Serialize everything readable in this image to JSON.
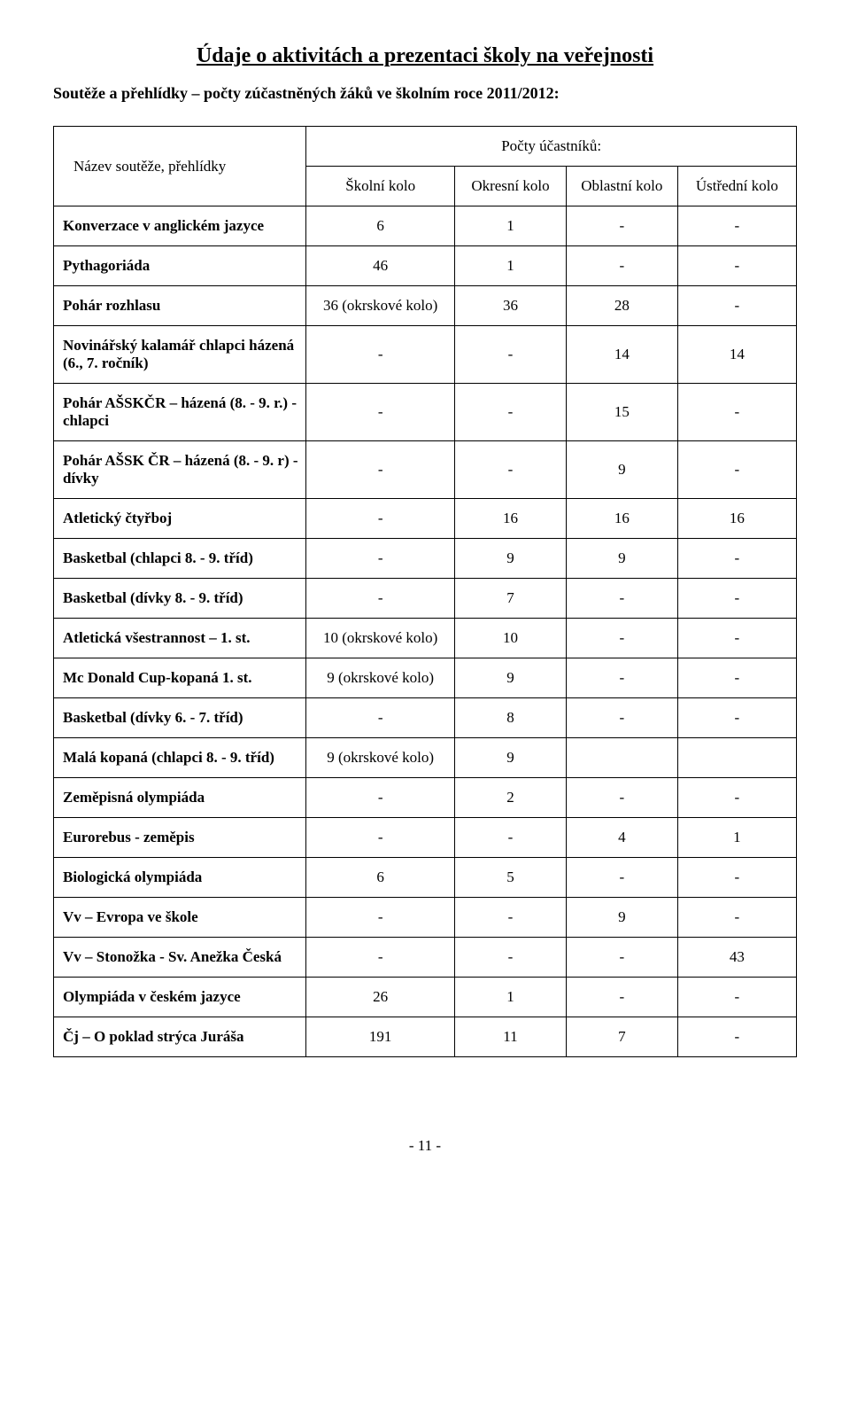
{
  "title": "Údaje o aktivitách a prezentaci školy na veřejnosti",
  "subhead": "Soutěže a přehlídky – počty zúčastněných žáků ve školním roce 2011/2012:",
  "header_name": "Název soutěže, přehlídky",
  "header_group": "Počty účastníků:",
  "cols": [
    "Školní kolo",
    "Okresní kolo",
    "Oblastní kolo",
    "Ústřední kolo"
  ],
  "rows": [
    {
      "name": "Konverzace v anglickém jazyce",
      "v": [
        "6",
        "1",
        "-",
        "-"
      ]
    },
    {
      "name": "Pythagoriáda",
      "v": [
        "46",
        "1",
        "-",
        "-"
      ]
    },
    {
      "name": "Pohár rozhlasu",
      "v": [
        "36 (okrskové kolo)",
        "36",
        "28",
        "-"
      ]
    },
    {
      "name": "Novinářský kalamář chlapci házená (6., 7. ročník)",
      "v": [
        "-",
        "-",
        "14",
        "14"
      ]
    },
    {
      "name": "Pohár AŠSKČR – házená (8. - 9. r.) - chlapci",
      "v": [
        "-",
        "-",
        "15",
        "-"
      ]
    },
    {
      "name": "Pohár AŠSK ČR – házená (8. - 9. r) - dívky",
      "v": [
        "-",
        "-",
        "9",
        "-"
      ]
    },
    {
      "name": "Atletický čtyřboj",
      "v": [
        "-",
        "16",
        "16",
        "16"
      ]
    },
    {
      "name": "Basketbal (chlapci 8. - 9. tříd)",
      "v": [
        "-",
        "9",
        "9",
        "-"
      ]
    },
    {
      "name": "Basketbal (dívky 8. - 9. tříd)",
      "v": [
        "-",
        "7",
        "-",
        "-"
      ]
    },
    {
      "name": "Atletická všestrannost – 1. st.",
      "v": [
        "10 (okrskové kolo)",
        "10",
        "-",
        "-"
      ]
    },
    {
      "name": "Mc Donald Cup-kopaná 1. st.",
      "v": [
        "9 (okrskové kolo)",
        "9",
        "-",
        "-"
      ]
    },
    {
      "name": "Basketbal (dívky 6. - 7. tříd)",
      "v": [
        "-",
        "8",
        "-",
        "-"
      ]
    },
    {
      "name": "Malá kopaná (chlapci 8. - 9. tříd)",
      "v": [
        "9 (okrskové kolo)",
        "9",
        "",
        ""
      ]
    },
    {
      "name": "Zeměpisná olympiáda",
      "v": [
        "-",
        "2",
        "-",
        "-"
      ]
    },
    {
      "name": "Eurorebus - zeměpis",
      "v": [
        "-",
        "-",
        "4",
        "1"
      ]
    },
    {
      "name": "Biologická olympiáda",
      "v": [
        "6",
        "5",
        "-",
        "-"
      ]
    },
    {
      "name": "Vv – Evropa ve škole",
      "v": [
        "-",
        "-",
        "9",
        "-"
      ]
    },
    {
      "name": "Vv – Stonožka - Sv. Anežka Česká",
      "v": [
        "-",
        "-",
        "-",
        "43"
      ]
    },
    {
      "name": "Olympiáda v českém jazyce",
      "v": [
        "26",
        "1",
        "-",
        "-"
      ]
    },
    {
      "name": "Čj – O poklad strýca Juráša",
      "v": [
        "191",
        "11",
        "7",
        "-"
      ]
    }
  ],
  "pagenum": "- 11 -"
}
